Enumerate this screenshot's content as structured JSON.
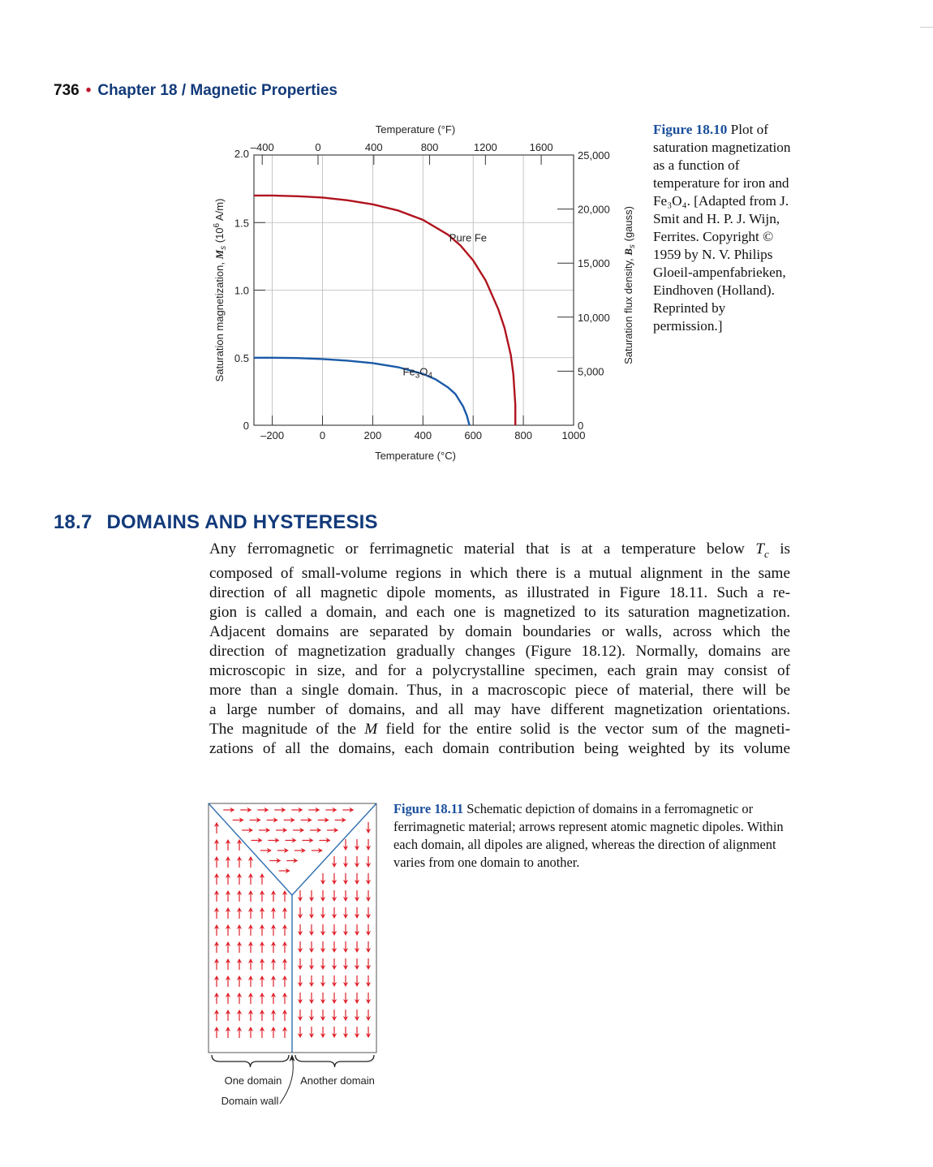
{
  "running_head": {
    "page_number": "736",
    "separator": "•",
    "chapter": "Chapter 18 / Magnetic Properties"
  },
  "figure_18_10": {
    "caption_label": "Figure 18.10",
    "caption_text": " Plot of saturation magnetization as a function of temperature for iron and Fe₃O₄. [Adapted from J. Smit and H. P. J. Wijn, Ferrites. Copyright © 1959 by N. V. Philips Gloeil-ampenfabrieken, Eindhoven (Holland). Reprinted by permission.]",
    "chart_data": {
      "type": "line",
      "x_bottom": {
        "label": "Temperature (°C)",
        "range": [
          -273,
          1000
        ],
        "ticks": [
          -200,
          0,
          200,
          400,
          600,
          800,
          1000
        ],
        "tick_labels": [
          "–200",
          "0",
          "200",
          "400",
          "600",
          "800",
          "1000"
        ]
      },
      "x_top": {
        "label": "Temperature (°F)",
        "ticks": [
          -400,
          0,
          400,
          800,
          1200,
          1600
        ],
        "tick_labels": [
          "–400",
          "0",
          "400",
          "800",
          "1200",
          "1600"
        ]
      },
      "y_left": {
        "label_pre": "Saturation magnetization, ",
        "label_var": "M",
        "label_sub": "s",
        "label_unit_pre": " (10",
        "label_unit_sup": "6",
        "label_unit_post": " A/m)",
        "range": [
          0,
          2.0
        ],
        "ticks": [
          0,
          0.5,
          1.0,
          1.5,
          2.0
        ],
        "tick_labels": [
          "0",
          "0.5",
          "1.0",
          "1.5",
          "2.0"
        ]
      },
      "y_right": {
        "label_pre": "Saturation flux density, ",
        "label_var": "B",
        "label_sub": "s",
        "label_post": " (gauss)",
        "range": [
          0,
          25000
        ],
        "ticks": [
          0,
          5000,
          10000,
          15000,
          20000,
          25000
        ],
        "tick_labels": [
          "0",
          "5,000",
          "10,000",
          "15,000",
          "20,000",
          "25,000"
        ]
      },
      "grid": true,
      "series": [
        {
          "name": "Pure Fe",
          "color": "#b0131e",
          "x": [
            -273,
            -200,
            -100,
            0,
            100,
            200,
            300,
            400,
            500,
            550,
            600,
            650,
            700,
            725,
            750,
            760,
            768,
            768
          ],
          "y": [
            1.7,
            1.7,
            1.695,
            1.685,
            1.665,
            1.635,
            1.59,
            1.52,
            1.41,
            1.33,
            1.22,
            1.07,
            0.86,
            0.72,
            0.52,
            0.38,
            0.15,
            0.0
          ]
        },
        {
          "name": "Fe3O4",
          "label_base": "Fe",
          "label_sub1": "3",
          "label_mid": "O",
          "label_sub2": "4",
          "color": "#1a5aa8",
          "x": [
            -273,
            -200,
            -100,
            0,
            100,
            200,
            300,
            400,
            450,
            500,
            530,
            560,
            575,
            585
          ],
          "y": [
            0.5,
            0.5,
            0.497,
            0.49,
            0.478,
            0.46,
            0.43,
            0.38,
            0.34,
            0.28,
            0.23,
            0.14,
            0.07,
            0.0
          ]
        }
      ]
    }
  },
  "section": {
    "number": "18.7",
    "title": "DOMAINS AND HYSTERESIS"
  },
  "body": {
    "lines": [
      [
        "Any ferromagnetic or ferrimagnetic material that is at a temperature below ",
        "T",
        "c",
        " is"
      ],
      [
        "composed of small-volume regions in which there is a mutual alignment in the same"
      ],
      [
        "direction of all magnetic dipole moments, as illustrated in Figure 18.11. Such a re-"
      ],
      [
        "gion is called a domain, and each one is magnetized to its saturation magnetization."
      ],
      [
        "Adjacent domains are separated by domain boundaries or walls, across which the"
      ],
      [
        "direction of magnetization gradually changes (Figure 18.12). Normally, domains are"
      ],
      [
        "microscopic in size, and for a polycrystalline specimen, each grain may consist of"
      ],
      [
        "more than a single domain. Thus, in a macroscopic piece of material, there will be"
      ],
      [
        "a large number of domains, and all may have different magnetization orientations."
      ],
      [
        "The magnitude of the ",
        "M",
        " field for the entire solid is the vector sum of the magneti-"
      ],
      [
        "zations of all the domains, each domain contribution being weighted by its volume"
      ]
    ]
  },
  "figure_18_11": {
    "caption_label": "Figure 18.11",
    "caption_text": " Schematic depiction of domains in a ferromagnetic or ferrimagnetic material; arrows represent atomic magnetic dipoles. Within each domain, all dipoles are aligned, whereas the direction of alignment varies from one domain to another.",
    "labels": {
      "one_domain": "One domain",
      "another_domain": "Another domain",
      "domain_wall": "Domain wall"
    },
    "arrow_color": "#e0202a",
    "wall_color": "#2f6fb0"
  }
}
